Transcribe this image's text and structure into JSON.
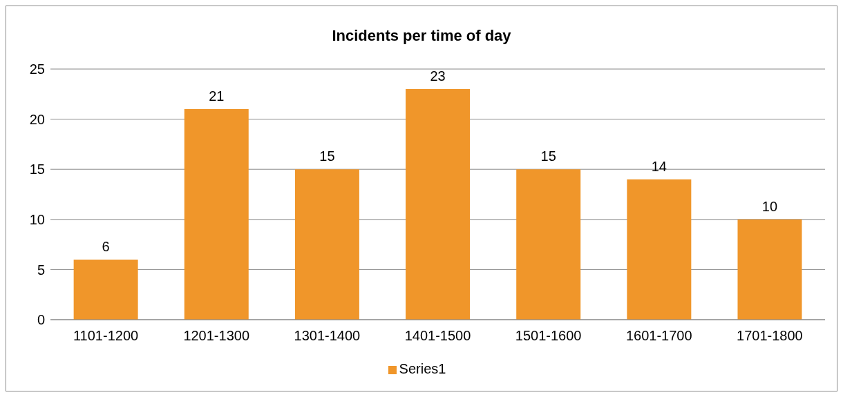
{
  "chart_data": {
    "type": "bar",
    "title": "Incidents per time of day",
    "categories": [
      "1101-1200",
      "1201-1300",
      "1301-1400",
      "1401-1500",
      "1501-1600",
      "1601-1700",
      "1701-1800"
    ],
    "series": [
      {
        "name": "Series1",
        "color": "#f0962a",
        "values": [
          6,
          21,
          15,
          23,
          15,
          14,
          10
        ]
      }
    ],
    "ylim": [
      0,
      25
    ],
    "yticks": [
      0,
      5,
      10,
      15,
      20,
      25
    ],
    "grid": "y",
    "legend": "bottom",
    "data_labels": true
  }
}
